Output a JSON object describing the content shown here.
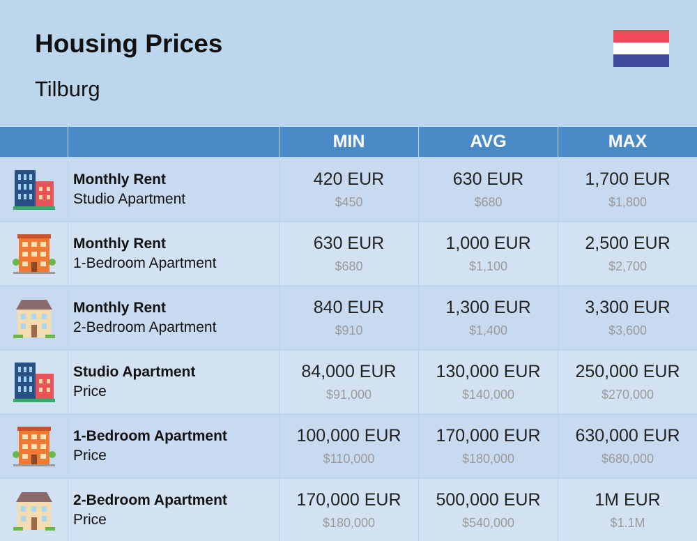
{
  "header": {
    "title": "Housing Prices",
    "subtitle": "Tilburg"
  },
  "table": {
    "columns": [
      "MIN",
      "AVG",
      "MAX"
    ],
    "rows": [
      {
        "title": "Monthly Rent",
        "subtitle": "Studio Apartment",
        "cells": [
          {
            "eur": "420 EUR",
            "usd": "$450"
          },
          {
            "eur": "630 EUR",
            "usd": "$680"
          },
          {
            "eur": "1,700 EUR",
            "usd": "$1,800"
          }
        ]
      },
      {
        "title": "Monthly Rent",
        "subtitle": "1-Bedroom Apartment",
        "cells": [
          {
            "eur": "630 EUR",
            "usd": "$680"
          },
          {
            "eur": "1,000 EUR",
            "usd": "$1,100"
          },
          {
            "eur": "2,500 EUR",
            "usd": "$2,700"
          }
        ]
      },
      {
        "title": "Monthly Rent",
        "subtitle": "2-Bedroom Apartment",
        "cells": [
          {
            "eur": "840 EUR",
            "usd": "$910"
          },
          {
            "eur": "1,300 EUR",
            "usd": "$1,400"
          },
          {
            "eur": "3,300 EUR",
            "usd": "$3,600"
          }
        ]
      },
      {
        "title": "Studio Apartment",
        "subtitle": "Price",
        "cells": [
          {
            "eur": "84,000 EUR",
            "usd": "$91,000"
          },
          {
            "eur": "130,000 EUR",
            "usd": "$140,000"
          },
          {
            "eur": "250,000 EUR",
            "usd": "$270,000"
          }
        ]
      },
      {
        "title": "1-Bedroom Apartment",
        "subtitle": "Price",
        "cells": [
          {
            "eur": "100,000 EUR",
            "usd": "$110,000"
          },
          {
            "eur": "170,000 EUR",
            "usd": "$180,000"
          },
          {
            "eur": "630,000 EUR",
            "usd": "$680,000"
          }
        ]
      },
      {
        "title": "2-Bedroom Apartment",
        "subtitle": "Price",
        "cells": [
          {
            "eur": "170,000 EUR",
            "usd": "$180,000"
          },
          {
            "eur": "500,000 EUR",
            "usd": "$540,000"
          },
          {
            "eur": "1M EUR",
            "usd": "$1.1M"
          }
        ]
      }
    ]
  }
}
